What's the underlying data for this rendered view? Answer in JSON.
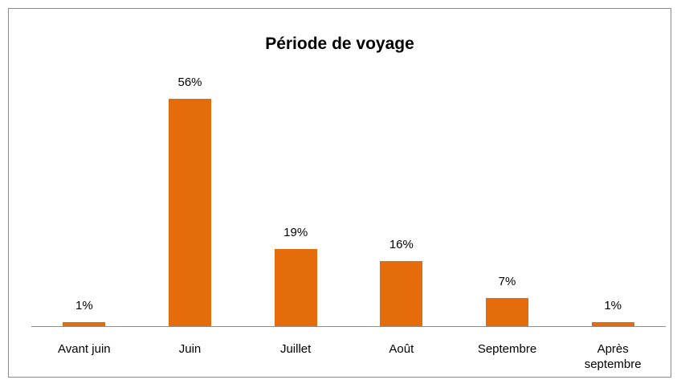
{
  "chart_data": {
    "type": "bar",
    "title": "Période de voyage",
    "categories": [
      "Avant juin",
      "Juin",
      "Juillet",
      "Août",
      "Septembre",
      "Après septembre"
    ],
    "values": [
      1,
      56,
      19,
      16,
      7,
      1
    ],
    "value_labels": [
      "1%",
      "56%",
      "19%",
      "16%",
      "7%",
      "1%"
    ],
    "color": "#e46c0a"
  }
}
